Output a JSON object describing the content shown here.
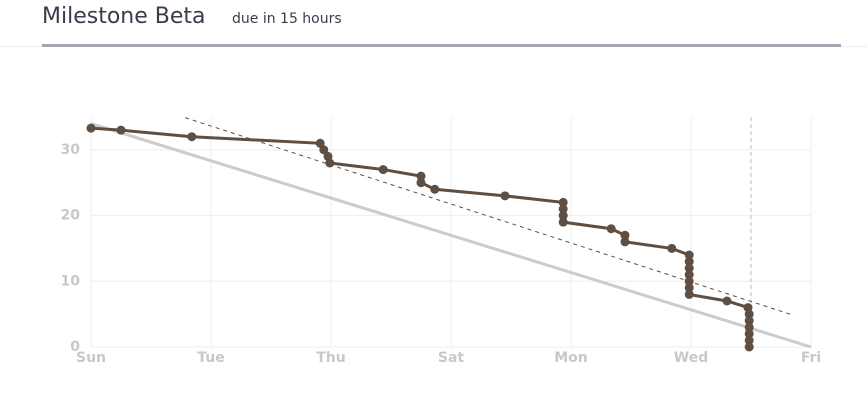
{
  "header": {
    "title": "Milestone Beta",
    "subtitle": "due in 15 hours"
  },
  "chart_data": {
    "type": "line",
    "xlim": [
      0,
      12
    ],
    "xticks": [
      {
        "value": 0,
        "label": "Sun"
      },
      {
        "value": 2,
        "label": "Tue"
      },
      {
        "value": 4,
        "label": "Thu"
      },
      {
        "value": 6,
        "label": "Sat"
      },
      {
        "value": 8,
        "label": "Mon"
      },
      {
        "value": 10,
        "label": "Wed"
      },
      {
        "value": 12,
        "label": "Fri"
      }
    ],
    "ylim": [
      0,
      35
    ],
    "yticks": [
      0,
      10,
      20,
      30
    ],
    "grid": true,
    "now": 11,
    "series": [
      {
        "color": "#cccccc",
        "style": "solid",
        "markers": false,
        "x": [
          0,
          12
        ],
        "values": [
          34,
          0
        ]
      },
      {
        "color": "#5e4f42",
        "style": "dashed",
        "markers": false,
        "x": [
          1.57,
          11.65
        ],
        "values": [
          34.9,
          5
        ]
      },
      {
        "color": "#5e4f42",
        "style": "solid",
        "markers": true,
        "x": [
          0,
          0.5,
          1.68,
          3.82,
          3.88,
          3.95,
          3.98,
          4.87,
          5.5,
          5.5,
          5.73,
          6.9,
          7.87,
          7.87,
          7.87,
          7.87,
          8.67,
          8.9,
          8.9,
          9.68,
          9.97,
          9.97,
          9.97,
          9.97,
          9.97,
          9.97,
          9.97,
          10.6,
          10.95,
          10.97,
          10.97,
          10.97,
          10.97,
          10.97,
          10.97
        ],
        "values": [
          33.3,
          33,
          32,
          31,
          30,
          29,
          28,
          27,
          26,
          25,
          24,
          23,
          22,
          21,
          20,
          19,
          18,
          17,
          16,
          15,
          14,
          13,
          12,
          11,
          10,
          9,
          8,
          7,
          6,
          5,
          4,
          3,
          2,
          1,
          0
        ]
      }
    ]
  }
}
